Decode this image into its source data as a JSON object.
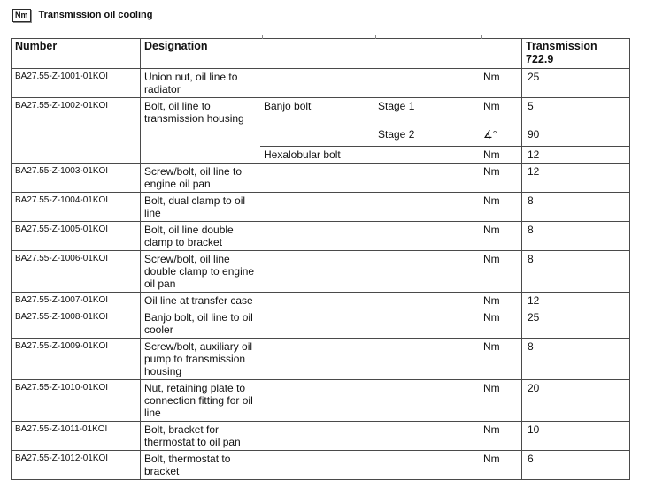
{
  "header": {
    "unit_badge": "Nm",
    "title": "Transmission oil cooling"
  },
  "table": {
    "columns": {
      "number": "Number",
      "designation": "Designation",
      "transmission": "Transmission 722.9"
    },
    "rows": [
      {
        "number": "BA27.55-Z-1001-01KOI",
        "designation": "Union nut, oil line to radiator",
        "subrows": [
          {
            "item": "",
            "stage": "",
            "unit": "Nm",
            "value": "25"
          }
        ]
      },
      {
        "number": "BA27.55-Z-1002-01KOI",
        "designation": "Bolt, oil line to transmission housing",
        "subrows": [
          {
            "item": "Banjo bolt",
            "stage": "Stage 1",
            "unit": "Nm",
            "value": "5"
          },
          {
            "item": "",
            "stage": "Stage 2",
            "unit": "∡°",
            "value": "90"
          },
          {
            "item": "Hexalobular bolt",
            "stage": "",
            "unit": "Nm",
            "value": "12"
          }
        ]
      },
      {
        "number": "BA27.55-Z-1003-01KOI",
        "designation": "Screw/bolt, oil line to engine oil pan",
        "subrows": [
          {
            "item": "",
            "stage": "",
            "unit": "Nm",
            "value": "12"
          }
        ]
      },
      {
        "number": "BA27.55-Z-1004-01KOI",
        "designation": "Bolt, dual clamp to oil line",
        "subrows": [
          {
            "item": "",
            "stage": "",
            "unit": "Nm",
            "value": "8"
          }
        ]
      },
      {
        "number": "BA27.55-Z-1005-01KOI",
        "designation": "Bolt, oil line double clamp to bracket",
        "subrows": [
          {
            "item": "",
            "stage": "",
            "unit": "Nm",
            "value": "8"
          }
        ]
      },
      {
        "number": "BA27.55-Z-1006-01KOI",
        "designation": "Screw/bolt, oil line double clamp to engine oil pan",
        "subrows": [
          {
            "item": "",
            "stage": "",
            "unit": "Nm",
            "value": "8"
          }
        ]
      },
      {
        "number": "BA27.55-Z-1007-01KOI",
        "designation": "Oil line at transfer case",
        "subrows": [
          {
            "item": "",
            "stage": "",
            "unit": "Nm",
            "value": "12"
          }
        ]
      },
      {
        "number": "BA27.55-Z-1008-01KOI",
        "designation": "Banjo bolt, oil line to oil cooler",
        "subrows": [
          {
            "item": "",
            "stage": "",
            "unit": "Nm",
            "value": "25"
          }
        ]
      },
      {
        "number": "BA27.55-Z-1009-01KOI",
        "designation": "Screw/bolt, auxiliary oil pump to transmission housing",
        "subrows": [
          {
            "item": "",
            "stage": "",
            "unit": "Nm",
            "value": "8"
          }
        ]
      },
      {
        "number": "BA27.55-Z-1010-01KOI",
        "designation": "Nut, retaining plate to connection fitting for oil line",
        "subrows": [
          {
            "item": "",
            "stage": "",
            "unit": "Nm",
            "value": "20"
          }
        ]
      },
      {
        "number": "BA27.55-Z-1011-01KOI",
        "designation": "Bolt, bracket for thermostat to oil pan",
        "subrows": [
          {
            "item": "",
            "stage": "",
            "unit": "Nm",
            "value": "10"
          }
        ]
      },
      {
        "number": "BA27.55-Z-1012-01KOI",
        "designation": "Bolt, thermostat to bracket",
        "subrows": [
          {
            "item": "",
            "stage": "",
            "unit": "Nm",
            "value": "6"
          }
        ]
      }
    ]
  },
  "colors": {
    "border": "#4a4a4a",
    "text": "#111111",
    "background": "#ffffff"
  }
}
